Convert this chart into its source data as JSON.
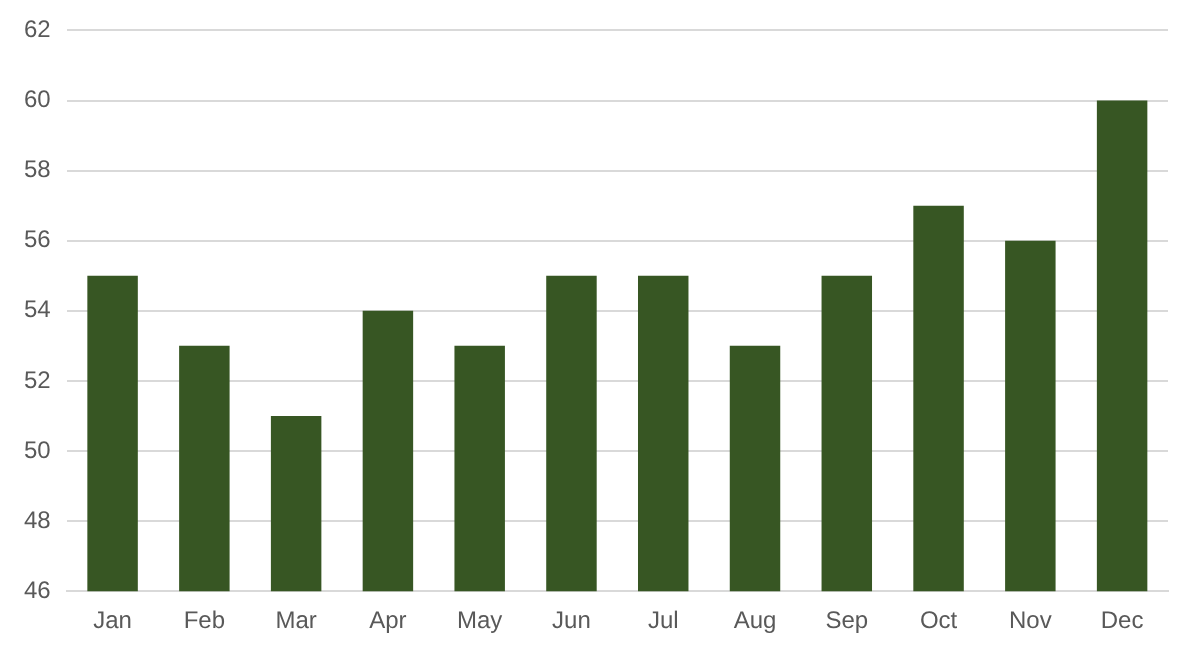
{
  "chart_data": {
    "type": "bar",
    "categories": [
      "Jan",
      "Feb",
      "Mar",
      "Apr",
      "May",
      "Jun",
      "Jul",
      "Aug",
      "Sep",
      "Oct",
      "Nov",
      "Dec"
    ],
    "values": [
      55,
      53,
      51,
      54,
      53,
      55,
      55,
      53,
      55,
      57,
      56,
      60
    ],
    "color": "#375623",
    "ylim": [
      46,
      62
    ],
    "yticks": [
      46,
      48,
      50,
      52,
      54,
      56,
      58,
      60,
      62
    ],
    "grid": "y"
  }
}
